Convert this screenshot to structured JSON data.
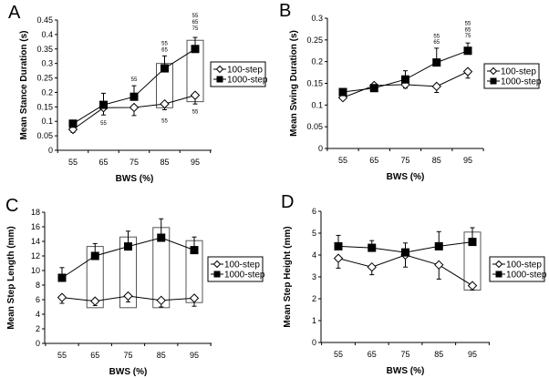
{
  "chart_data": [
    {
      "panel": "A",
      "type": "line",
      "ylabel": "Mean Stance Duration (s)",
      "xlabel": "BWS (%)",
      "categories": [
        "55",
        "65",
        "75",
        "85",
        "95"
      ],
      "ylim": [
        0,
        0.45
      ],
      "yticks": [
        "0",
        "0.05",
        "0.1",
        "0.15",
        "0.2",
        "0.25",
        "0.3",
        "0.35",
        "0.4",
        "0.45"
      ],
      "ytick_step": 0.05,
      "series": [
        {
          "name": "100-step",
          "marker": "open-diamond",
          "values": [
            0.072,
            0.147,
            0.148,
            0.16,
            0.19
          ],
          "error": [
            0.01,
            0.025,
            0.028,
            0.02,
            0.03
          ],
          "error_dir": "down"
        },
        {
          "name": "1000-step",
          "marker": "filled-square",
          "values": [
            0.092,
            0.157,
            0.185,
            0.283,
            0.35
          ],
          "error": [
            0.012,
            0.04,
            0.038,
            0.043,
            0.04
          ],
          "error_dir": "up"
        }
      ],
      "boxes": [
        {
          "category": "85",
          "range": [
            0.147,
            0.3
          ]
        },
        {
          "category": "95",
          "range": [
            0.168,
            0.38
          ]
        }
      ],
      "annotations": [
        {
          "category": "65",
          "y": 0.095,
          "text": "55"
        },
        {
          "category": "75",
          "y": 0.245,
          "text": "55"
        },
        {
          "category": "85",
          "y": 0.37,
          "text": "55"
        },
        {
          "category": "85",
          "y": 0.348,
          "text": "65"
        },
        {
          "category": "85",
          "y": 0.102,
          "text": "55"
        },
        {
          "category": "95",
          "y": 0.465,
          "text": "55"
        },
        {
          "category": "95",
          "y": 0.443,
          "text": "65"
        },
        {
          "category": "95",
          "y": 0.421,
          "text": "75"
        },
        {
          "category": "95",
          "y": 0.133,
          "text": "55"
        }
      ]
    },
    {
      "panel": "B",
      "type": "line",
      "ylabel": "Mean Swing Duration (s)",
      "xlabel": "BWS (%)",
      "categories": [
        "55",
        "65",
        "75",
        "85",
        "95"
      ],
      "ylim": [
        0,
        0.3
      ],
      "yticks": [
        "0",
        "0.05",
        "0.1",
        "0.15",
        "0.2",
        "0.25",
        "0.3"
      ],
      "ytick_step": 0.05,
      "series": [
        {
          "name": "100-step",
          "marker": "open-diamond",
          "values": [
            0.117,
            0.145,
            0.147,
            0.143,
            0.177
          ],
          "error": [
            0.004,
            0.004,
            0.008,
            0.014,
            0.015
          ],
          "error_dir": "down"
        },
        {
          "name": "1000-step",
          "marker": "filled-square",
          "values": [
            0.13,
            0.139,
            0.159,
            0.198,
            0.225
          ],
          "error": [
            0.004,
            0.004,
            0.02,
            0.033,
            0.018
          ],
          "error_dir": "up"
        }
      ],
      "boxes": [],
      "annotations": [
        {
          "category": "85",
          "y": 0.259,
          "text": "55"
        },
        {
          "category": "85",
          "y": 0.245,
          "text": "65"
        },
        {
          "category": "95",
          "y": 0.288,
          "text": "55"
        },
        {
          "category": "95",
          "y": 0.274,
          "text": "65"
        },
        {
          "category": "95",
          "y": 0.26,
          "text": "75"
        }
      ]
    },
    {
      "panel": "C",
      "type": "line",
      "ylabel": "Mean Step Length (mm)",
      "xlabel": "BWS (%)",
      "categories": [
        "55",
        "65",
        "75",
        "85",
        "95"
      ],
      "ylim": [
        0,
        18
      ],
      "yticks": [
        "0",
        "2",
        "4",
        "6",
        "8",
        "10",
        "12",
        "14",
        "16",
        "18"
      ],
      "ytick_step": 2,
      "series": [
        {
          "name": "100-step",
          "marker": "open-diamond",
          "values": [
            6.3,
            5.8,
            6.5,
            5.9,
            6.2
          ],
          "error": [
            0.8,
            0.6,
            0.8,
            0.9,
            1.1
          ],
          "error_dir": "down"
        },
        {
          "name": "1000-step",
          "marker": "filled-square",
          "values": [
            9.0,
            12.0,
            13.3,
            14.5,
            12.8
          ],
          "error": [
            1.4,
            1.7,
            2.1,
            2.6,
            1.8
          ],
          "error_dir": "up"
        }
      ],
      "boxes": [
        {
          "category": "65",
          "range": [
            4.9,
            13.3
          ]
        },
        {
          "category": "75",
          "range": [
            4.9,
            14.6
          ]
        },
        {
          "category": "85",
          "range": [
            4.9,
            15.9
          ]
        },
        {
          "category": "95",
          "range": [
            5.6,
            14.1
          ]
        }
      ],
      "annotations": []
    },
    {
      "panel": "D",
      "type": "line",
      "ylabel": "Mean Step Height (mm)",
      "xlabel": "BWS (%)",
      "categories": [
        "55",
        "65",
        "75",
        "85",
        "95"
      ],
      "ylim": [
        0,
        6
      ],
      "yticks": [
        "0",
        "1",
        "2",
        "3",
        "4",
        "5",
        "6"
      ],
      "ytick_step": 1,
      "series": [
        {
          "name": "100-step",
          "marker": "open-diamond",
          "values": [
            3.85,
            3.45,
            4.0,
            3.55,
            2.6
          ],
          "error": [
            0.45,
            0.35,
            0.55,
            0.65,
            0.2
          ],
          "error_dir": "down"
        },
        {
          "name": "1000-step",
          "marker": "filled-square",
          "values": [
            4.4,
            4.33,
            4.12,
            4.4,
            4.6
          ],
          "error": [
            0.5,
            0.33,
            0.43,
            0.67,
            0.65
          ],
          "error_dir": "up"
        }
      ],
      "boxes": [
        {
          "category": "95",
          "range": [
            2.4,
            5.05
          ]
        }
      ],
      "annotations": []
    }
  ]
}
